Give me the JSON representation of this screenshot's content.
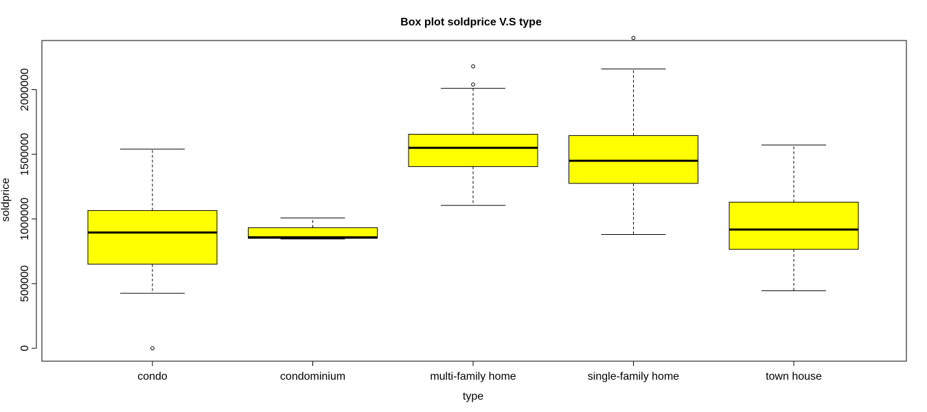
{
  "chart_data": {
    "type": "boxplot",
    "title": "Box plot soldprice V.S type",
    "xlabel": "type",
    "ylabel": "soldprice",
    "categories": [
      "condo",
      "condominium",
      "multi-family home",
      "single-family home",
      "town house"
    ],
    "y_ticks": [
      0,
      500000,
      1000000,
      1500000,
      2000000
    ],
    "y_tick_labels": [
      "0",
      "500000",
      "1000000",
      "1500000",
      "2000000"
    ],
    "ylim": [
      -100000,
      2380000
    ],
    "box_fill": "#ffff00",
    "boxes": [
      {
        "category": "condo",
        "whisker_low": 425000,
        "q1": 650000,
        "median": 895000,
        "q3": 1065000,
        "whisker_high": 1540000,
        "outliers": [
          0
        ]
      },
      {
        "category": "condominium",
        "whisker_low": 845000,
        "q1": 850000,
        "median": 858000,
        "q3": 932000,
        "whisker_high": 1008000,
        "outliers": []
      },
      {
        "category": "multi-family home",
        "whisker_low": 1105000,
        "q1": 1405000,
        "median": 1550000,
        "q3": 1655000,
        "whisker_high": 2010000,
        "outliers": [
          2040000,
          2180000
        ]
      },
      {
        "category": "single-family home",
        "whisker_low": 880000,
        "q1": 1275000,
        "median": 1450000,
        "q3": 1645000,
        "whisker_high": 2160000,
        "outliers": [
          2400000
        ]
      },
      {
        "category": "town house",
        "whisker_low": 445000,
        "q1": 765000,
        "median": 918000,
        "q3": 1130000,
        "whisker_high": 1572000,
        "outliers": []
      }
    ]
  }
}
